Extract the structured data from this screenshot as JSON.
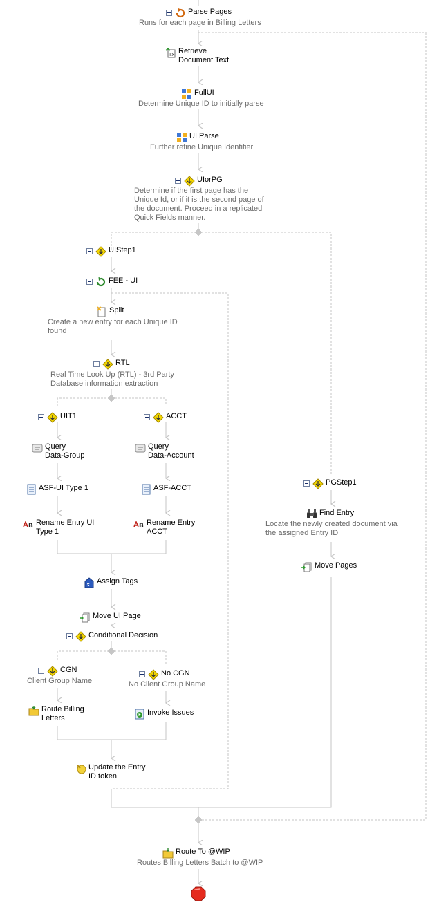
{
  "colors": {
    "connector": "#c6c6c6",
    "decision": "#f5d800",
    "stop": "#e52b1e"
  },
  "nodes": {
    "parse_pages": {
      "title": "Parse Pages",
      "desc": "Runs for each page in Billing Letters",
      "icon": "repeat-icon"
    },
    "retrieve": {
      "title_l1": "Retrieve",
      "title_l2": "Document Text",
      "icon": "retrieve-text-icon"
    },
    "fullui": {
      "title": "FullUI",
      "desc": "Determine Unique ID to initially parse",
      "icon": "pattern-match-icon"
    },
    "ui_parse": {
      "title": "UI Parse",
      "desc": "Further refine Unique Identifier",
      "icon": "pattern-match-icon"
    },
    "uiorpg": {
      "title": "UIorPG",
      "desc_lines": [
        "Determine if the first page has the",
        "Unique Id, or if it is the second page of",
        "the document.  Proceed in a replicated",
        "Quick Fields manner."
      ],
      "icon": "decision-icon"
    },
    "uistep1": {
      "title": "UIStep1",
      "icon": "decision-icon"
    },
    "fee_ui": {
      "title": "FEE - UI",
      "icon": "for-each-entry-icon"
    },
    "split": {
      "title": "Split",
      "desc_lines": [
        "Create a new entry for each Unique ID",
        "found"
      ],
      "icon": "split-icon"
    },
    "rtl": {
      "title": "RTL",
      "desc_lines": [
        "Real Time Look Up (RTL) - 3rd Party",
        "Database information extraction"
      ],
      "icon": "decision-icon"
    },
    "uit1": {
      "title": "UIT1",
      "icon": "decision-icon"
    },
    "acct": {
      "title": "ACCT",
      "icon": "decision-icon"
    },
    "query_group": {
      "title_l1": "Query",
      "title_l2": "Data-Group",
      "icon": "query-data-icon"
    },
    "query_account": {
      "title_l1": "Query",
      "title_l2": "Data-Account",
      "icon": "query-data-icon"
    },
    "asf_ui": {
      "title": "ASF-UI Type 1",
      "icon": "fields-icon"
    },
    "asf_acct": {
      "title": "ASF-ACCT",
      "icon": "fields-icon"
    },
    "rename_ui": {
      "title_l1": "Rename Entry UI",
      "title_l2": "Type 1",
      "icon": "rename-icon"
    },
    "rename_acct": {
      "title_l1": "Rename Entry",
      "title_l2": "ACCT",
      "icon": "rename-icon"
    },
    "assign_tags": {
      "title": "Assign Tags",
      "icon": "tag-icon"
    },
    "move_ui_page": {
      "title": "Move UI Page",
      "icon": "move-pages-icon"
    },
    "cond_decision": {
      "title": "Conditional Decision",
      "icon": "decision-icon"
    },
    "cgn": {
      "title": "CGN",
      "desc": "Client Group Name",
      "icon": "decision-icon"
    },
    "no_cgn": {
      "title": "No CGN",
      "desc": "No Client Group Name",
      "icon": "decision-icon"
    },
    "route_billing": {
      "title_l1": "Route Billing",
      "title_l2": "Letters",
      "icon": "route-folder-icon"
    },
    "invoke_issues": {
      "title": "Invoke Issues",
      "icon": "invoke-icon"
    },
    "update_token": {
      "title_l1": "Update the Entry",
      "title_l2": "ID token",
      "icon": "token-icon"
    },
    "pgstep1": {
      "title": "PGStep1",
      "icon": "decision-icon"
    },
    "find_entry": {
      "title": "Find Entry",
      "desc_lines": [
        "Locate the newly created document via",
        "the assigned Entry ID"
      ],
      "icon": "binoculars-icon"
    },
    "move_pages": {
      "title": "Move Pages",
      "icon": "move-pages-icon"
    },
    "route_wip": {
      "title": "Route To @WIP",
      "desc": "Routes Billing Letters Batch to @WIP",
      "icon": "route-folder-icon"
    },
    "terminate": {
      "icon": "stop-icon"
    }
  }
}
